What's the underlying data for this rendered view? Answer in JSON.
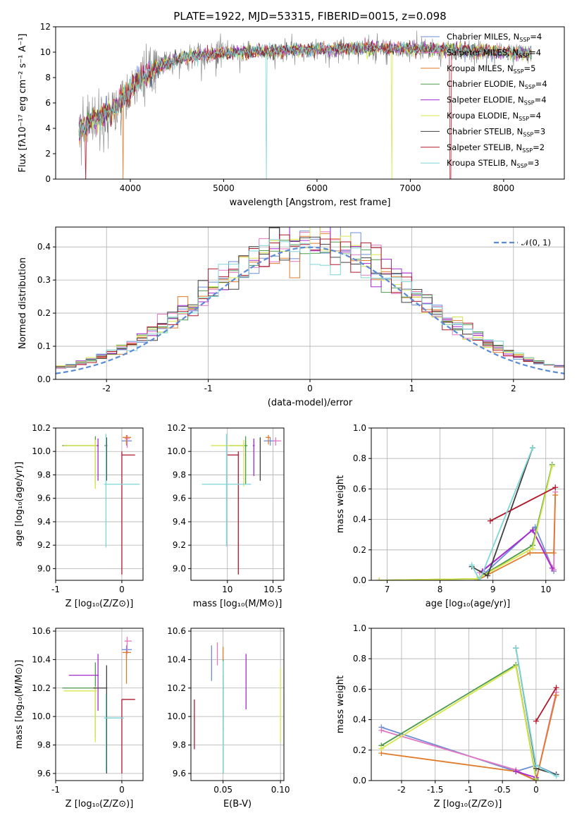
{
  "figure": {
    "title": "PLATE=1922, MJD=53315, FIBERID=0015, z=0.098",
    "colors": {
      "Chabrier MILES": "#6b8ed6",
      "Salpeter MILES": "#e377c2",
      "Kroupa MILES": "#e07b2a",
      "Chabrier ELODIE": "#4c9a4c",
      "Salpeter ELODIE": "#a52ad0",
      "Kroupa ELODIE": "#d6e64a",
      "Chabrier STELIB": "#404040",
      "Salpeter STELIB": "#b2182b",
      "Kroupa STELIB": "#7fd6d6",
      "data": "#808080",
      "gaussian": "#5b8bd6"
    },
    "legend_prefix": [
      "Chabrier MILES, N",
      "Salpeter MILES, N",
      "Kroupa MILES, N",
      "Chabrier ELODIE, N",
      "Salpeter ELODIE, N",
      "Kroupa ELODIE, N",
      "Chabrier STELIB, N",
      "Salpeter STELIB, N",
      "Kroupa STELIB, N"
    ],
    "legend_sub": "SSP",
    "legend_suffix": [
      "=4",
      "=4",
      "=5",
      "=4",
      "=4",
      "=4",
      "=3",
      "=2",
      "=3"
    ],
    "gauss_label": "𝒩(0, 1)"
  },
  "chart_data": [
    {
      "id": "spectrum",
      "type": "line",
      "xlabel": "wavelength [Angstrom, rest frame]",
      "ylabel": "Flux [fλ10⁻¹⁷ erg cm⁻² s⁻¹ A⁻¹]",
      "xlim": [
        3200,
        8650
      ],
      "ylim": [
        0,
        12
      ],
      "xticks": [
        4000,
        5000,
        6000,
        7000,
        8000
      ],
      "yticks": [
        0,
        2,
        4,
        6,
        8,
        10,
        12
      ],
      "grid": false,
      "legend": "right",
      "continuum": [
        [
          3450,
          3.8
        ],
        [
          3550,
          4.4
        ],
        [
          3700,
          5.0
        ],
        [
          3800,
          5.4
        ],
        [
          3900,
          6.2
        ],
        [
          4000,
          7.0
        ],
        [
          4100,
          7.8
        ],
        [
          4200,
          8.4
        ],
        [
          4300,
          8.9
        ],
        [
          4500,
          9.4
        ],
        [
          4700,
          9.7
        ],
        [
          5000,
          9.9
        ],
        [
          5500,
          10.1
        ],
        [
          6000,
          10.2
        ],
        [
          6500,
          10.3
        ],
        [
          7000,
          10.3
        ],
        [
          7500,
          10.2
        ],
        [
          8000,
          10.0
        ],
        [
          8300,
          9.9
        ]
      ],
      "model_dips": [
        {
          "model": "Kroupa MILES",
          "x": 3920
        },
        {
          "model": "Kroupa STELIB",
          "x": 5460
        },
        {
          "model": "Kroupa ELODIE",
          "x": 6800
        },
        {
          "model": "Salpeter STELIB",
          "x": 7430
        },
        {
          "model": "Salpeter STELIB",
          "x": 3520
        }
      ]
    },
    {
      "id": "residuals",
      "type": "histogram",
      "xlabel": "(data-model)/error",
      "ylabel": "Normed distribution",
      "xlim": [
        -2.5,
        2.5
      ],
      "ylim": [
        0,
        0.46
      ],
      "xticks": [
        -2,
        -1,
        0,
        1,
        2
      ],
      "yticks": [
        0.0,
        0.1,
        0.2,
        0.3,
        0.4
      ],
      "grid": true,
      "bins": 50,
      "legend": "top-right"
    },
    {
      "id": "age_vs_Z",
      "type": "errorbar",
      "xlabel": "Z [log₁₀(Z/Z⊙)]",
      "ylabel": "age  [log₁₀(age/yr)]",
      "xlim": [
        -1.0,
        0.32
      ],
      "ylim": [
        8.9,
        10.2
      ],
      "xticks": [
        -1,
        0
      ],
      "yticks": [
        9.0,
        9.2,
        9.4,
        9.6,
        9.8,
        10.0,
        10.2
      ],
      "grid": true,
      "points": [
        {
          "model": "Chabrier MILES",
          "x": 0.07,
          "y": 10.09,
          "xerr": [
            0.07,
            0.08
          ],
          "yerr": [
            0.04,
            0.03
          ]
        },
        {
          "model": "Salpeter MILES",
          "x": 0.08,
          "y": 10.11,
          "xerr": [
            0.04,
            0.04
          ],
          "yerr": [
            0.08,
            0.03
          ]
        },
        {
          "model": "Kroupa MILES",
          "x": 0.07,
          "y": 10.12,
          "xerr": [
            0.06,
            0.07
          ],
          "yerr": [
            0.06,
            0.02
          ]
        },
        {
          "model": "Chabrier ELODIE",
          "x": -0.4,
          "y": 10.05,
          "xerr": [
            0.5,
            0.01
          ],
          "yerr": [
            0.33,
            0.08
          ]
        },
        {
          "model": "Salpeter ELODIE",
          "x": -0.36,
          "y": 10.05,
          "xerr": [
            0.04,
            0.01
          ],
          "yerr": [
            0.3,
            0.06
          ]
        },
        {
          "model": "Kroupa ELODIE",
          "x": -0.4,
          "y": 10.05,
          "xerr": [
            0.48,
            0.02
          ],
          "yerr": [
            0.37,
            0.05
          ]
        },
        {
          "model": "Chabrier STELIB",
          "x": -0.23,
          "y": 10.05,
          "xerr": [
            0.03,
            0.01
          ],
          "yerr": [
            0.3,
            0.07
          ]
        },
        {
          "model": "Salpeter STELIB",
          "x": 0.0,
          "y": 9.97,
          "xerr": [
            0.0,
            0.2
          ],
          "yerr": [
            1.02,
            0.03
          ]
        },
        {
          "model": "Kroupa STELIB",
          "x": -0.24,
          "y": 9.72,
          "xerr": [
            0.03,
            0.51
          ],
          "yerr": [
            0.54,
            0.43
          ]
        }
      ]
    },
    {
      "id": "age_vs_mass",
      "type": "errorbar",
      "xlabel": "mass [log₁₀(M/M⊙)]",
      "ylabel": "",
      "xlim": [
        9.6,
        10.62
      ],
      "ylim": [
        8.9,
        10.2
      ],
      "xticks": [
        10.0,
        10.5
      ],
      "yticks": [
        9.0,
        9.2,
        9.4,
        9.6,
        9.8,
        10.0,
        10.2
      ],
      "grid": true,
      "points": [
        {
          "model": "Chabrier MILES",
          "x": 10.47,
          "y": 10.09,
          "xerr": [
            0.07,
            0.05
          ],
          "yerr": [
            0.04,
            0.03
          ]
        },
        {
          "model": "Salpeter MILES",
          "x": 10.53,
          "y": 10.09,
          "xerr": [
            0.03,
            0.06
          ],
          "yerr": [
            0.04,
            0.03
          ]
        },
        {
          "model": "Kroupa MILES",
          "x": 10.45,
          "y": 10.12,
          "xerr": [
            0.03,
            0.02
          ],
          "yerr": [
            0.06,
            0.02
          ]
        },
        {
          "model": "Chabrier ELODIE",
          "x": 10.2,
          "y": 10.05,
          "xerr": [
            0.18,
            0.02
          ],
          "yerr": [
            0.33,
            0.08
          ]
        },
        {
          "model": "Salpeter ELODIE",
          "x": 10.29,
          "y": 10.05,
          "xerr": [
            0.01,
            0.01
          ],
          "yerr": [
            0.26,
            0.06
          ]
        },
        {
          "model": "Kroupa ELODIE",
          "x": 10.18,
          "y": 10.05,
          "xerr": [
            0.36,
            0.01
          ],
          "yerr": [
            0.35,
            0.05
          ]
        },
        {
          "model": "Chabrier STELIB",
          "x": 10.36,
          "y": 10.05,
          "xerr": [
            0.0,
            0.0
          ],
          "yerr": [
            0.3,
            0.07
          ]
        },
        {
          "model": "Salpeter STELIB",
          "x": 10.12,
          "y": 9.97,
          "xerr": [
            0.12,
            0.0
          ],
          "yerr": [
            1.02,
            0.03
          ]
        },
        {
          "model": "Kroupa STELIB",
          "x": 9.99,
          "y": 9.72,
          "xerr": [
            0.27,
            0.27
          ],
          "yerr": [
            0.53,
            0.43
          ]
        }
      ]
    },
    {
      "id": "weight_vs_age",
      "type": "line",
      "xlabel": "age  [log₁₀(age/yr)]",
      "ylabel": "mass weight",
      "xlim": [
        6.7,
        10.35
      ],
      "ylim": [
        0,
        1.0
      ],
      "xticks": [
        7,
        8,
        9,
        10
      ],
      "yticks": [
        0.0,
        0.2,
        0.4,
        0.6,
        0.8,
        1.0
      ],
      "grid": true,
      "series": [
        {
          "model": "Chabrier MILES",
          "x": [
            8.7,
            9.8,
            10.15
          ],
          "y": [
            0.0,
            0.35,
            0.06
          ]
        },
        {
          "model": "Salpeter MILES",
          "x": [
            8.75,
            9.75,
            10.15,
            10.18
          ],
          "y": [
            0.05,
            0.33,
            0.07,
            0.58
          ]
        },
        {
          "model": "Kroupa MILES",
          "x": [
            8.7,
            9.7,
            10.15,
            10.18
          ],
          "y": [
            0.0,
            0.18,
            0.18,
            0.56
          ]
        },
        {
          "model": "Chabrier ELODIE",
          "x": [
            6.85,
            8.7,
            9.75,
            10.12
          ],
          "y": [
            0.0,
            0.01,
            0.23,
            0.76
          ]
        },
        {
          "model": "Salpeter ELODIE",
          "x": [
            8.8,
            9.75,
            10.12
          ],
          "y": [
            0.06,
            0.33,
            0.08
          ]
        },
        {
          "model": "Kroupa ELODIE",
          "x": [
            6.85,
            8.7,
            9.75,
            10.12
          ],
          "y": [
            0.0,
            0.01,
            0.21,
            0.75
          ]
        },
        {
          "model": "Chabrier STELIB",
          "x": [
            8.6,
            8.9,
            9.75
          ],
          "y": [
            0.09,
            0.03,
            0.87
          ]
        },
        {
          "model": "Salpeter STELIB",
          "x": [
            8.95,
            10.18
          ],
          "y": [
            0.39,
            0.61
          ]
        },
        {
          "model": "Kroupa STELIB",
          "x": [
            8.6,
            8.75,
            9.75
          ],
          "y": [
            0.1,
            0.0,
            0.87
          ]
        }
      ]
    },
    {
      "id": "mass_vs_Z",
      "type": "errorbar",
      "xlabel": "Z [log₁₀(Z/Z⊙)]",
      "ylabel": "mass [log₁₀(M/M⊙)]",
      "xlim": [
        -1.0,
        0.32
      ],
      "ylim": [
        9.55,
        10.62
      ],
      "xticks": [
        -1,
        0
      ],
      "yticks": [
        9.6,
        9.8,
        10.0,
        10.2,
        10.4,
        10.6
      ],
      "grid": true,
      "points": [
        {
          "model": "Chabrier MILES",
          "x": 0.07,
          "y": 10.47,
          "xerr": [
            0.07,
            0.08
          ],
          "yerr": [
            0.06,
            0.03
          ]
        },
        {
          "model": "Salpeter MILES",
          "x": 0.08,
          "y": 10.53,
          "xerr": [
            0.04,
            0.07
          ],
          "yerr": [
            0.09,
            0.03
          ]
        },
        {
          "model": "Kroupa MILES",
          "x": 0.07,
          "y": 10.45,
          "xerr": [
            0.06,
            0.07
          ],
          "yerr": [
            0.22,
            0.01
          ]
        },
        {
          "model": "Chabrier ELODIE",
          "x": -0.4,
          "y": 10.2,
          "xerr": [
            0.5,
            0.01
          ],
          "yerr": [
            0.35,
            0.18
          ]
        },
        {
          "model": "Salpeter ELODIE",
          "x": -0.36,
          "y": 10.29,
          "xerr": [
            0.44,
            0.01
          ],
          "yerr": [
            0.25,
            0.15
          ]
        },
        {
          "model": "Kroupa ELODIE",
          "x": -0.4,
          "y": 10.18,
          "xerr": [
            0.48,
            0.02
          ],
          "yerr": [
            0.36,
            0.03
          ]
        },
        {
          "model": "Chabrier STELIB",
          "x": -0.23,
          "y": 10.2,
          "xerr": [
            0.2,
            0.01
          ],
          "yerr": [
            0.6,
            0.16
          ]
        },
        {
          "model": "Salpeter STELIB",
          "x": 0.0,
          "y": 10.12,
          "xerr": [
            0.0,
            0.2
          ],
          "yerr": [
            0.52,
            0.0
          ]
        },
        {
          "model": "Kroupa STELIB",
          "x": -0.24,
          "y": 9.99,
          "xerr": [
            0.03,
            0.27
          ],
          "yerr": [
            0.38,
            0.17
          ]
        }
      ]
    },
    {
      "id": "mass_vs_ebv",
      "type": "errorbar",
      "xlabel": "E(B-V)",
      "ylabel": "",
      "xlim": [
        0.022,
        0.103
      ],
      "ylim": [
        9.55,
        10.62
      ],
      "xticks": [
        0.05,
        0.1
      ],
      "xtick_labels": [
        "0.05",
        "0.10"
      ],
      "yticks": [
        9.6,
        9.8,
        10.0,
        10.2,
        10.4,
        10.6
      ],
      "grid": true,
      "points": [
        {
          "model": "Chabrier MILES",
          "x": 0.04,
          "y": 10.37,
          "xerr": [
            0,
            0
          ],
          "yerr": [
            0.12,
            0.13
          ]
        },
        {
          "model": "Salpeter MILES",
          "x": 0.045,
          "y": 10.44,
          "xerr": [
            0,
            0
          ],
          "yerr": [
            0.08,
            0.08
          ]
        },
        {
          "model": "Kroupa MILES",
          "x": 0.05,
          "y": 10.4,
          "xerr": [
            0,
            0
          ],
          "yerr": [
            0.1,
            0.09
          ]
        },
        {
          "model": "Chabrier ELODIE",
          "x": 0.05,
          "y": 10.2,
          "xerr": [
            0,
            0
          ],
          "yerr": [
            0.3,
            0.2
          ]
        },
        {
          "model": "Salpeter ELODIE",
          "x": 0.07,
          "y": 10.25,
          "xerr": [
            0,
            0
          ],
          "yerr": [
            0.2,
            0.19
          ]
        },
        {
          "model": "Kroupa ELODIE",
          "x": 0.1,
          "y": 10.08,
          "xerr": [
            0,
            0
          ],
          "yerr": [
            0.26,
            0.26
          ]
        },
        {
          "model": "Chabrier STELIB",
          "x": 0.05,
          "y": 10.0,
          "xerr": [
            0,
            0
          ],
          "yerr": [
            0.4,
            0.29
          ]
        },
        {
          "model": "Salpeter STELIB",
          "x": 0.025,
          "y": 9.95,
          "xerr": [
            0,
            0
          ],
          "yerr": [
            0.18,
            0.17
          ]
        },
        {
          "model": "Kroupa STELIB",
          "x": 0.05,
          "y": 10.0,
          "xerr": [
            0,
            0
          ],
          "yerr": [
            0.4,
            0.39
          ]
        }
      ]
    },
    {
      "id": "weight_vs_Z",
      "type": "line",
      "xlabel": "Z [log₁₀(Z/Z⊙)]",
      "ylabel": "mass weight",
      "xlim": [
        -2.45,
        0.42
      ],
      "ylim": [
        0,
        1.0
      ],
      "xticks": [
        -2.0,
        -1.5,
        -1.0,
        -0.5,
        0.0
      ],
      "yticks": [
        0.0,
        0.2,
        0.4,
        0.6,
        0.8,
        1.0
      ],
      "grid": true,
      "series": [
        {
          "model": "Chabrier MILES",
          "x": [
            -2.3,
            -0.3,
            0.0,
            0.3
          ],
          "y": [
            0.35,
            0.06,
            0.1,
            0.04
          ]
        },
        {
          "model": "Salpeter MILES",
          "x": [
            -2.3,
            -0.3,
            0.0,
            0.3
          ],
          "y": [
            0.33,
            0.07,
            0.0,
            0.58
          ]
        },
        {
          "model": "Kroupa MILES",
          "x": [
            -2.3,
            -0.3,
            0.0,
            0.3
          ],
          "y": [
            0.18,
            0.06,
            0.0,
            0.56
          ]
        },
        {
          "model": "Chabrier ELODIE",
          "x": [
            -2.3,
            -0.3,
            0.0
          ],
          "y": [
            0.23,
            0.76,
            0.01
          ]
        },
        {
          "model": "Salpeter ELODIE",
          "x": [
            -0.3,
            0.0
          ],
          "y": [
            0.06,
            0.02
          ]
        },
        {
          "model": "Kroupa ELODIE",
          "x": [
            -2.3,
            -0.3,
            0.0
          ],
          "y": [
            0.21,
            0.75,
            0.0
          ]
        },
        {
          "model": "Chabrier STELIB",
          "x": [
            -0.3,
            0.0,
            0.3
          ],
          "y": [
            0.87,
            0.08,
            0.04
          ]
        },
        {
          "model": "Salpeter STELIB",
          "x": [
            0.0,
            0.3
          ],
          "y": [
            0.39,
            0.61
          ]
        },
        {
          "model": "Kroupa STELIB",
          "x": [
            -0.3,
            0.0,
            0.3
          ],
          "y": [
            0.87,
            0.1,
            0.03
          ]
        }
      ]
    }
  ]
}
